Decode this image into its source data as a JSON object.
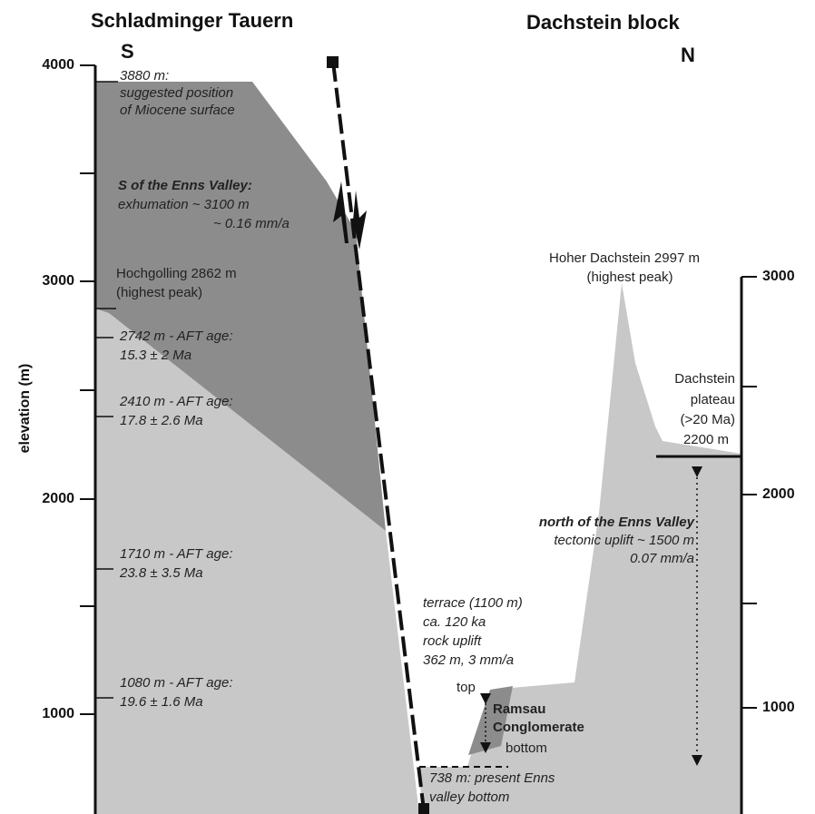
{
  "header": {
    "left_title": "Schladminger Tauern",
    "left_side": "S",
    "right_title": "Dachstein block",
    "right_side": "N"
  },
  "left_axis": {
    "label": "elevation (m)",
    "ticks": [
      "4000",
      "3000",
      "2000",
      "1000"
    ]
  },
  "right_axis": {
    "ticks": [
      "3000",
      "2000",
      "1000"
    ]
  },
  "annotations": {
    "miocene": [
      "3880 m:",
      "suggested position",
      "of Miocene surface"
    ],
    "exhumation": [
      "S of the Enns Valley:",
      "exhumation ~ 3100 m",
      "~ 0.16 mm/a"
    ],
    "hochgolling": [
      "Hochgolling 2862 m",
      "(highest peak)"
    ],
    "aft_2742": [
      "2742 m - AFT age:",
      "15.3 ± 2 Ma"
    ],
    "aft_2410": [
      "2410 m - AFT age:",
      "17.8 ± 2.6 Ma"
    ],
    "aft_1710": [
      "1710 m - AFT age:",
      "23.8 ± 3.5 Ma"
    ],
    "aft_1080": [
      "1080 m - AFT age:",
      "19.6 ± 1.6 Ma"
    ],
    "hoher_dachstein": [
      "Hoher Dachstein 2997 m",
      "(highest peak)"
    ],
    "plateau": [
      "Dachstein",
      "plateau",
      "(>20 Ma)",
      "2200 m"
    ],
    "north": [
      "north of the Enns Valley",
      "tectonic uplift ~ 1500 m",
      "0.07 mm/a"
    ],
    "terrace": [
      "terrace (1100 m)",
      "ca. 120 ka",
      "rock uplift",
      "362 m, 3 mm/a"
    ],
    "ramsau": [
      "top",
      "Ramsau",
      "Conglomerate",
      "bottom"
    ],
    "valley": [
      "738 m: present Enns",
      "valley bottom"
    ]
  }
}
